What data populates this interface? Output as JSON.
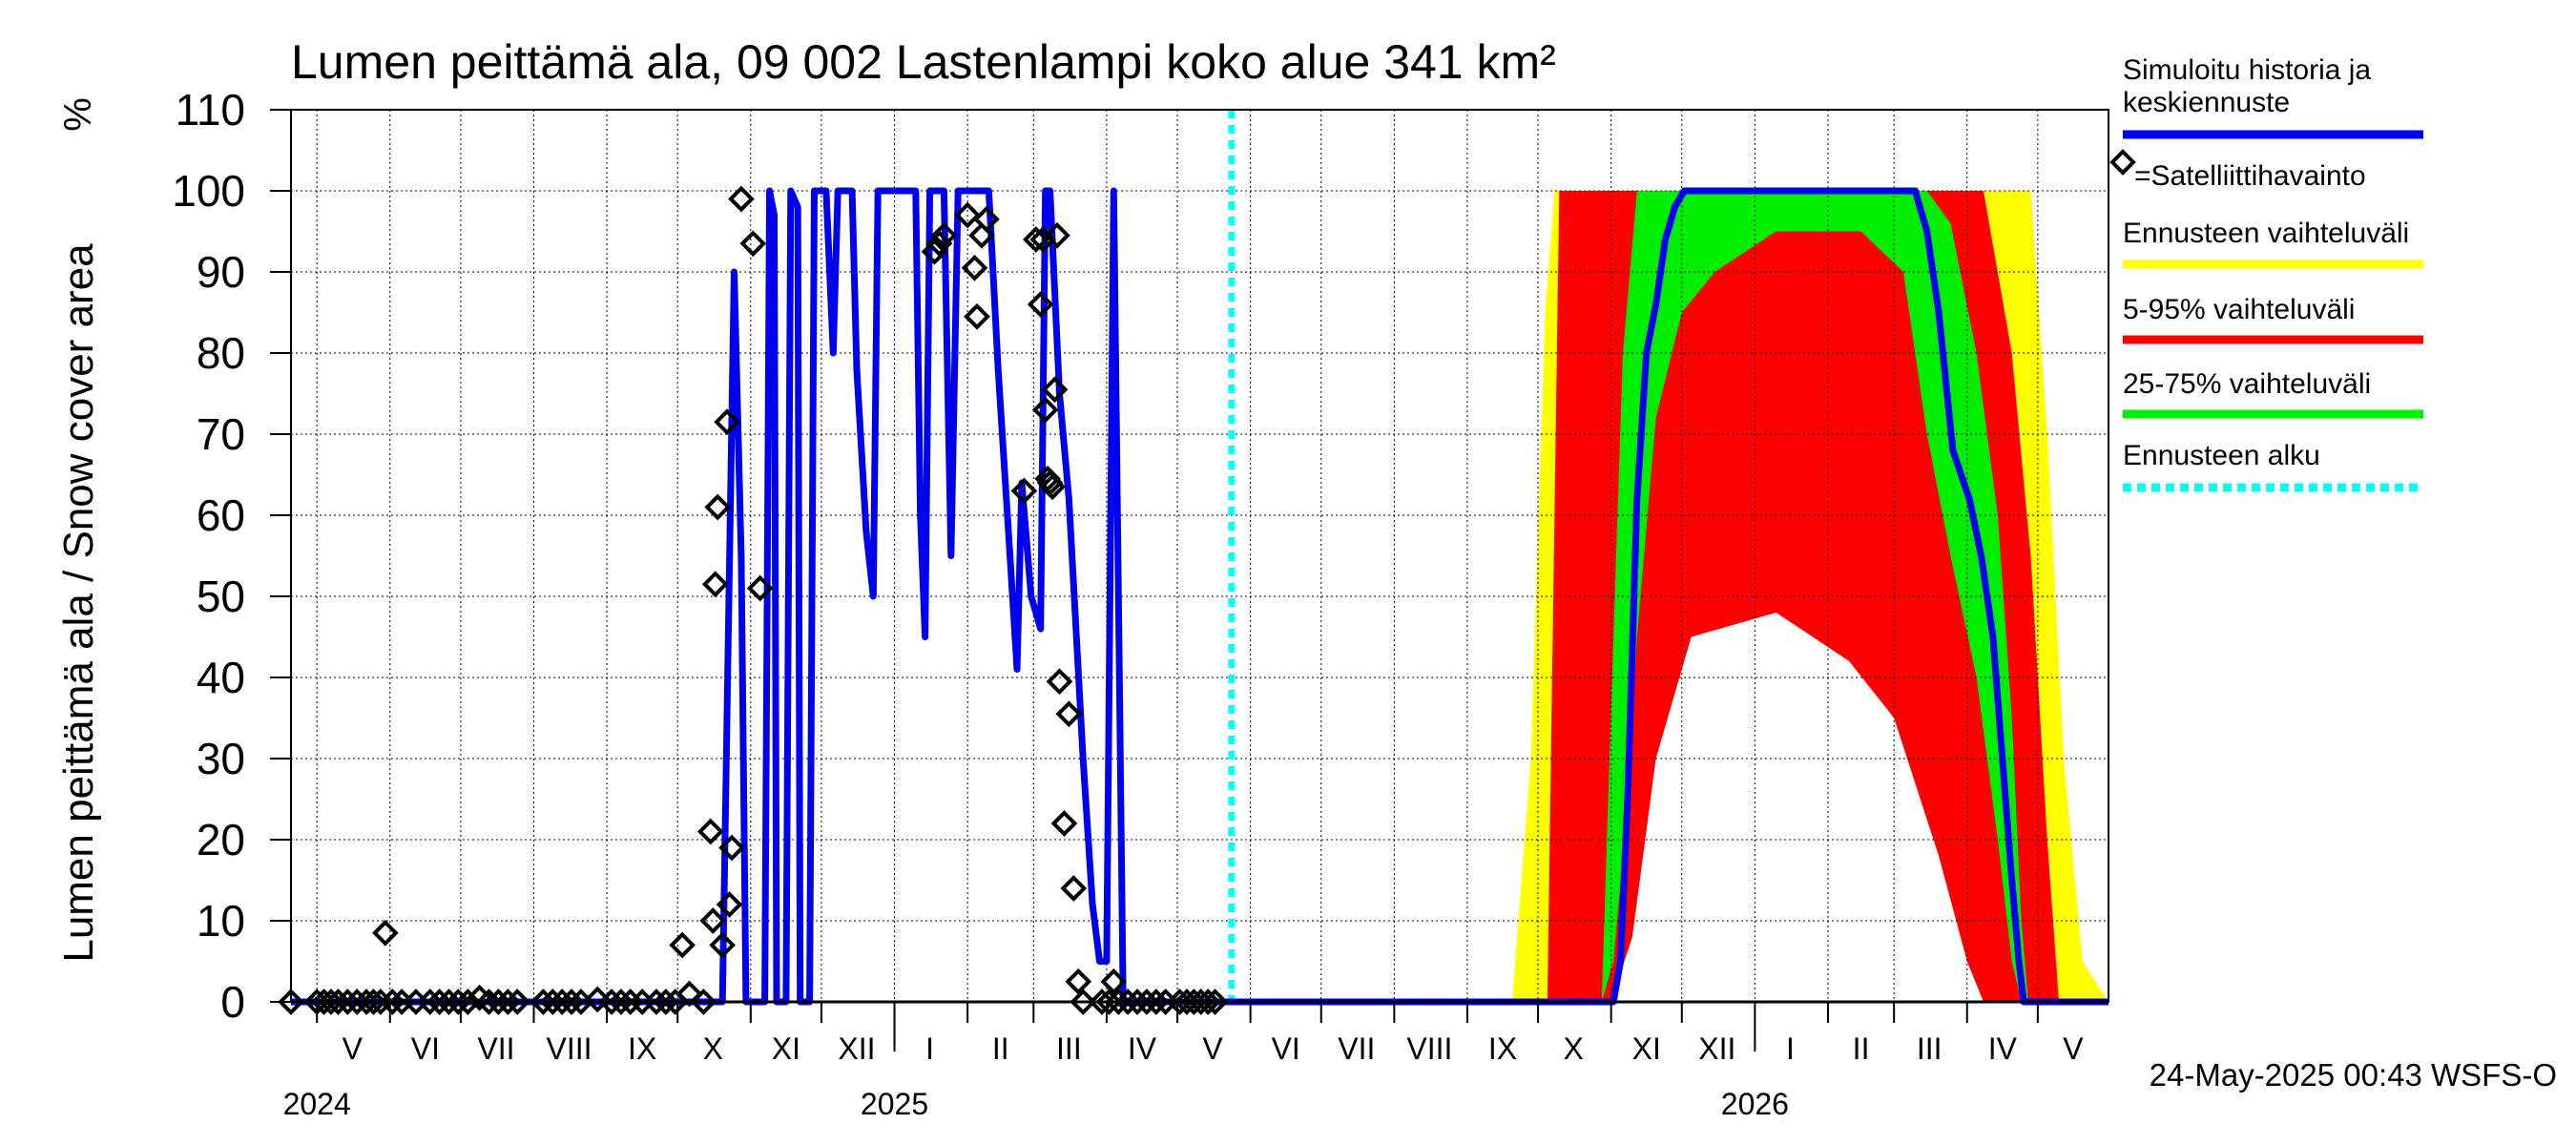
{
  "chart_data": {
    "type": "area",
    "title": "Lumen peittämä ala, 09 002 Lastenlampi koko alue 341 km²",
    "ylabel": "Lumen peittämä ala / Snow cover area",
    "yunit": "%",
    "ylim": [
      0,
      110
    ],
    "yticks": [
      0,
      10,
      20,
      30,
      40,
      50,
      60,
      70,
      80,
      90,
      100,
      110
    ],
    "xlim": [
      "2024-04-20",
      "2026-05-31"
    ],
    "grid": true,
    "month_labels": [
      {
        "label": "V",
        "date": "2024-05-16"
      },
      {
        "label": "VI",
        "date": "2024-06-16"
      },
      {
        "label": "VII",
        "date": "2024-07-16"
      },
      {
        "label": "VIII",
        "date": "2024-08-16"
      },
      {
        "label": "IX",
        "date": "2024-09-16"
      },
      {
        "label": "X",
        "date": "2024-10-16"
      },
      {
        "label": "XI",
        "date": "2024-11-16"
      },
      {
        "label": "XII",
        "date": "2024-12-16"
      },
      {
        "label": "I",
        "date": "2025-01-16"
      },
      {
        "label": "II",
        "date": "2025-02-15"
      },
      {
        "label": "III",
        "date": "2025-03-16"
      },
      {
        "label": "IV",
        "date": "2025-04-16"
      },
      {
        "label": "V",
        "date": "2025-05-16"
      },
      {
        "label": "VI",
        "date": "2025-06-16"
      },
      {
        "label": "VII",
        "date": "2025-07-16"
      },
      {
        "label": "VIII",
        "date": "2025-08-16"
      },
      {
        "label": "IX",
        "date": "2025-09-16"
      },
      {
        "label": "X",
        "date": "2025-10-16"
      },
      {
        "label": "XI",
        "date": "2025-11-16"
      },
      {
        "label": "XII",
        "date": "2025-12-16"
      },
      {
        "label": "I",
        "date": "2026-01-16"
      },
      {
        "label": "II",
        "date": "2026-02-15"
      },
      {
        "label": "III",
        "date": "2026-03-16"
      },
      {
        "label": "IV",
        "date": "2026-04-16"
      },
      {
        "label": "V",
        "date": "2026-05-16"
      }
    ],
    "year_labels": [
      {
        "label": "2024",
        "date": "2024-05-01"
      },
      {
        "label": "2025",
        "date": "2025-01-01"
      },
      {
        "label": "2026",
        "date": "2026-01-01"
      }
    ],
    "forecast_start": "2025-05-24",
    "legend": {
      "placement": "right",
      "entries": [
        {
          "label": "Simuloitu historia ja keskiennuste",
          "color": "#0000ee",
          "style": "line"
        },
        {
          "label": "=Satelliittihavainto",
          "color": "#000000",
          "style": "diamond"
        },
        {
          "label": "Ennusteen vaihteluväli",
          "color": "#ffff00",
          "style": "line"
        },
        {
          "label": "5-95% vaihteluväli",
          "color": "#ff0000",
          "style": "line"
        },
        {
          "label": "25-75% vaihteluväli",
          "color": "#00ee00",
          "style": "line"
        },
        {
          "label": "Ennusteen alku",
          "color": "#00ffff",
          "style": "dotted"
        }
      ]
    },
    "series": [
      {
        "name": "Simuloitu historia ja keskiennuste",
        "color": "#0000ee",
        "points": [
          [
            "2024-04-20",
            0
          ],
          [
            "2024-10-20",
            0
          ],
          [
            "2024-10-25",
            90
          ],
          [
            "2024-10-28",
            55
          ],
          [
            "2024-10-30",
            0
          ],
          [
            "2024-11-07",
            0
          ],
          [
            "2024-11-09",
            100
          ],
          [
            "2024-11-11",
            97
          ],
          [
            "2024-11-12",
            0
          ],
          [
            "2024-11-16",
            0
          ],
          [
            "2024-11-18",
            100
          ],
          [
            "2024-11-21",
            98
          ],
          [
            "2024-11-22",
            0
          ],
          [
            "2024-11-26",
            0
          ],
          [
            "2024-11-28",
            100
          ],
          [
            "2024-12-03",
            100
          ],
          [
            "2024-12-06",
            80
          ],
          [
            "2024-12-08",
            100
          ],
          [
            "2024-12-14",
            100
          ],
          [
            "2024-12-16",
            78
          ],
          [
            "2024-12-20",
            58
          ],
          [
            "2024-12-23",
            50
          ],
          [
            "2024-12-25",
            100
          ],
          [
            "2025-01-10",
            100
          ],
          [
            "2025-01-12",
            60
          ],
          [
            "2025-01-14",
            45
          ],
          [
            "2025-01-16",
            100
          ],
          [
            "2025-01-22",
            100
          ],
          [
            "2025-01-25",
            55
          ],
          [
            "2025-01-28",
            100
          ],
          [
            "2025-02-10",
            100
          ],
          [
            "2025-02-14",
            78
          ],
          [
            "2025-02-19",
            55
          ],
          [
            "2025-02-22",
            41
          ],
          [
            "2025-02-24",
            64
          ],
          [
            "2025-02-28",
            50
          ],
          [
            "2025-03-04",
            46
          ],
          [
            "2025-03-06",
            100
          ],
          [
            "2025-03-08",
            100
          ],
          [
            "2025-03-12",
            75
          ],
          [
            "2025-03-16",
            62
          ],
          [
            "2025-03-22",
            30
          ],
          [
            "2025-03-26",
            12
          ],
          [
            "2025-03-29",
            5
          ],
          [
            "2025-04-01",
            5
          ],
          [
            "2025-04-04",
            100
          ],
          [
            "2025-04-06",
            50
          ],
          [
            "2025-04-08",
            0
          ],
          [
            "2025-09-20",
            0
          ],
          [
            "2025-10-01",
            0
          ],
          [
            "2025-10-10",
            0
          ],
          [
            "2025-10-18",
            0
          ],
          [
            "2025-10-28",
            0
          ],
          [
            "2025-11-02",
            0
          ],
          [
            "2025-11-05",
            5
          ],
          [
            "2025-11-08",
            25
          ],
          [
            "2025-11-12",
            62
          ],
          [
            "2025-11-16",
            80
          ],
          [
            "2025-11-20",
            86
          ],
          [
            "2025-11-24",
            94
          ],
          [
            "2025-11-28",
            98
          ],
          [
            "2025-12-02",
            100
          ],
          [
            "2026-01-10",
            100
          ],
          [
            "2026-02-15",
            100
          ],
          [
            "2026-03-10",
            100
          ],
          [
            "2026-03-15",
            95
          ],
          [
            "2026-03-20",
            85
          ],
          [
            "2026-03-26",
            68
          ],
          [
            "2026-04-02",
            62
          ],
          [
            "2026-04-07",
            55
          ],
          [
            "2026-04-12",
            45
          ],
          [
            "2026-04-16",
            30
          ],
          [
            "2026-04-20",
            15
          ],
          [
            "2026-04-23",
            5
          ],
          [
            "2026-04-25",
            0
          ],
          [
            "2026-05-31",
            0
          ]
        ]
      },
      {
        "name": "Ennusteen vaihteluväli",
        "color": "#ffff00",
        "points": [
          [
            "2025-09-20",
            0,
            0
          ],
          [
            "2025-09-28",
            0,
            30
          ],
          [
            "2025-10-04",
            0,
            85
          ],
          [
            "2025-10-08",
            0,
            100
          ],
          [
            "2025-10-20",
            0,
            100
          ],
          [
            "2025-11-01",
            5,
            100
          ],
          [
            "2025-11-10",
            20,
            100
          ],
          [
            "2025-11-20",
            50,
            100
          ],
          [
            "2025-12-05",
            60,
            100
          ],
          [
            "2026-01-10",
            65,
            100
          ],
          [
            "2026-02-10",
            55,
            100
          ],
          [
            "2026-03-01",
            45,
            100
          ],
          [
            "2026-03-20",
            25,
            100
          ],
          [
            "2026-04-01",
            10,
            100
          ],
          [
            "2026-04-08",
            0,
            100
          ],
          [
            "2026-04-28",
            0,
            100
          ],
          [
            "2026-05-05",
            0,
            70
          ],
          [
            "2026-05-12",
            0,
            30
          ],
          [
            "2026-05-20",
            0,
            5
          ],
          [
            "2026-05-31",
            0,
            0
          ]
        ]
      },
      {
        "name": "5-95% vaihteluväli",
        "color": "#ff0000",
        "points": [
          [
            "2025-10-05",
            0,
            0
          ],
          [
            "2025-10-10",
            0,
            100
          ],
          [
            "2025-11-01",
            0,
            100
          ],
          [
            "2025-11-10",
            8,
            100
          ],
          [
            "2025-11-20",
            30,
            100
          ],
          [
            "2025-12-05",
            45,
            100
          ],
          [
            "2026-01-10",
            48,
            100
          ],
          [
            "2026-02-10",
            42,
            100
          ],
          [
            "2026-03-01",
            35,
            100
          ],
          [
            "2026-03-20",
            18,
            100
          ],
          [
            "2026-04-01",
            5,
            100
          ],
          [
            "2026-04-08",
            0,
            100
          ],
          [
            "2026-04-20",
            0,
            80
          ],
          [
            "2026-04-28",
            0,
            55
          ],
          [
            "2026-05-05",
            0,
            20
          ],
          [
            "2026-05-10",
            0,
            0
          ]
        ]
      },
      {
        "name": "25-75% vaihteluväli",
        "color": "#00ee00",
        "points": [
          [
            "2025-10-28",
            0,
            0
          ],
          [
            "2025-11-02",
            5,
            45
          ],
          [
            "2025-11-06",
            18,
            80
          ],
          [
            "2025-11-12",
            45,
            100
          ],
          [
            "2025-11-20",
            72,
            100
          ],
          [
            "2025-12-01",
            85,
            100
          ],
          [
            "2025-12-15",
            90,
            100
          ],
          [
            "2026-01-10",
            95,
            100
          ],
          [
            "2026-02-15",
            95,
            100
          ],
          [
            "2026-03-05",
            90,
            100
          ],
          [
            "2026-03-15",
            70,
            100
          ],
          [
            "2026-03-25",
            55,
            96
          ],
          [
            "2026-04-05",
            40,
            80
          ],
          [
            "2026-04-14",
            20,
            60
          ],
          [
            "2026-04-20",
            5,
            35
          ],
          [
            "2026-04-24",
            0,
            10
          ],
          [
            "2026-04-27",
            0,
            0
          ]
        ]
      }
    ],
    "observations": {
      "name": "=Satelliittihavainto",
      "points": [
        [
          "2024-04-20",
          0
        ],
        [
          "2024-05-01",
          0
        ],
        [
          "2024-05-04",
          0
        ],
        [
          "2024-05-07",
          0
        ],
        [
          "2024-05-10",
          0
        ],
        [
          "2024-05-14",
          0
        ],
        [
          "2024-05-18",
          0
        ],
        [
          "2024-05-22",
          0
        ],
        [
          "2024-05-25",
          0
        ],
        [
          "2024-05-28",
          0
        ],
        [
          "2024-05-30",
          8.5
        ],
        [
          "2024-06-02",
          0
        ],
        [
          "2024-06-06",
          0
        ],
        [
          "2024-06-12",
          0
        ],
        [
          "2024-06-18",
          0
        ],
        [
          "2024-06-22",
          0
        ],
        [
          "2024-06-26",
          0
        ],
        [
          "2024-06-30",
          0
        ],
        [
          "2024-07-04",
          0
        ],
        [
          "2024-07-09",
          0.5
        ],
        [
          "2024-07-13",
          0
        ],
        [
          "2024-07-17",
          0
        ],
        [
          "2024-07-21",
          0
        ],
        [
          "2024-07-25",
          0
        ],
        [
          "2024-08-05",
          0
        ],
        [
          "2024-08-09",
          0
        ],
        [
          "2024-08-13",
          0
        ],
        [
          "2024-08-17",
          0
        ],
        [
          "2024-08-21",
          0
        ],
        [
          "2024-08-28",
          0.3
        ],
        [
          "2024-09-03",
          0
        ],
        [
          "2024-09-07",
          0
        ],
        [
          "2024-09-11",
          0
        ],
        [
          "2024-09-16",
          0
        ],
        [
          "2024-09-22",
          0
        ],
        [
          "2024-09-26",
          0
        ],
        [
          "2024-09-30",
          0
        ],
        [
          "2024-10-03",
          7
        ],
        [
          "2024-10-06",
          1
        ],
        [
          "2024-10-12",
          0
        ],
        [
          "2024-10-15",
          21
        ],
        [
          "2024-10-16",
          10
        ],
        [
          "2024-10-17",
          51.5
        ],
        [
          "2024-10-18",
          61
        ],
        [
          "2024-10-20",
          7
        ],
        [
          "2024-10-22",
          71.5
        ],
        [
          "2024-10-23",
          12
        ],
        [
          "2024-10-24",
          19
        ],
        [
          "2024-10-28",
          99
        ],
        [
          "2024-11-02",
          93.5
        ],
        [
          "2024-11-05",
          51
        ],
        [
          "2025-01-18",
          92.5
        ],
        [
          "2025-01-20",
          93.5
        ],
        [
          "2025-01-22",
          94.5
        ],
        [
          "2025-02-01",
          97
        ],
        [
          "2025-02-04",
          90.5
        ],
        [
          "2025-02-05",
          84.5
        ],
        [
          "2025-02-07",
          94.5
        ],
        [
          "2025-02-09",
          96.5
        ],
        [
          "2025-02-25",
          63
        ],
        [
          "2025-03-02",
          94
        ],
        [
          "2025-03-04",
          86
        ],
        [
          "2025-03-05",
          94
        ],
        [
          "2025-03-06",
          73
        ],
        [
          "2025-03-07",
          64.5
        ],
        [
          "2025-03-08",
          64
        ],
        [
          "2025-03-09",
          63.5
        ],
        [
          "2025-03-10",
          75.5
        ],
        [
          "2025-03-11",
          94.5
        ],
        [
          "2025-03-12",
          39.5
        ],
        [
          "2025-03-14",
          22
        ],
        [
          "2025-03-16",
          35.5
        ],
        [
          "2025-03-18",
          14
        ],
        [
          "2025-03-20",
          2.5
        ],
        [
          "2025-03-22",
          0
        ],
        [
          "2025-03-30",
          0
        ],
        [
          "2025-04-02",
          0
        ],
        [
          "2025-04-04",
          2.5
        ],
        [
          "2025-04-06",
          0
        ],
        [
          "2025-04-10",
          0
        ],
        [
          "2025-04-14",
          0
        ],
        [
          "2025-04-18",
          0
        ],
        [
          "2025-04-22",
          0
        ],
        [
          "2025-04-26",
          0
        ],
        [
          "2025-05-02",
          0
        ],
        [
          "2025-05-05",
          0
        ],
        [
          "2025-05-08",
          0
        ],
        [
          "2025-05-11",
          0
        ],
        [
          "2025-05-14",
          0
        ],
        [
          "2025-05-17",
          0
        ]
      ]
    },
    "timestamp": "24-May-2025 00:43 WSFS-O"
  }
}
